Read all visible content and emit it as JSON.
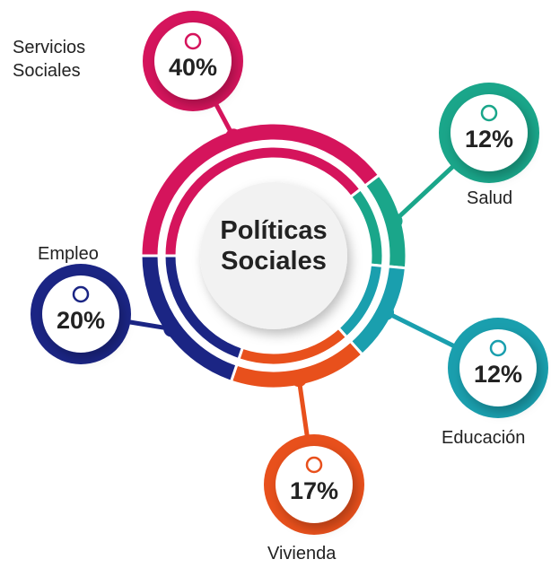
{
  "chart_data": {
    "type": "donut",
    "title": "Políticas Sociales",
    "categories": [
      "Servicios Sociales",
      "Salud",
      "Educación",
      "Vivienda",
      "Empleo"
    ],
    "values": [
      40,
      12,
      12,
      17,
      20
    ],
    "value_labels": [
      "40%",
      "12%",
      "12%",
      "17%",
      "20%"
    ],
    "colors": [
      "#d5145c",
      "#1aa68a",
      "#1a9fae",
      "#e8501c",
      "#1b2584"
    ]
  }
}
